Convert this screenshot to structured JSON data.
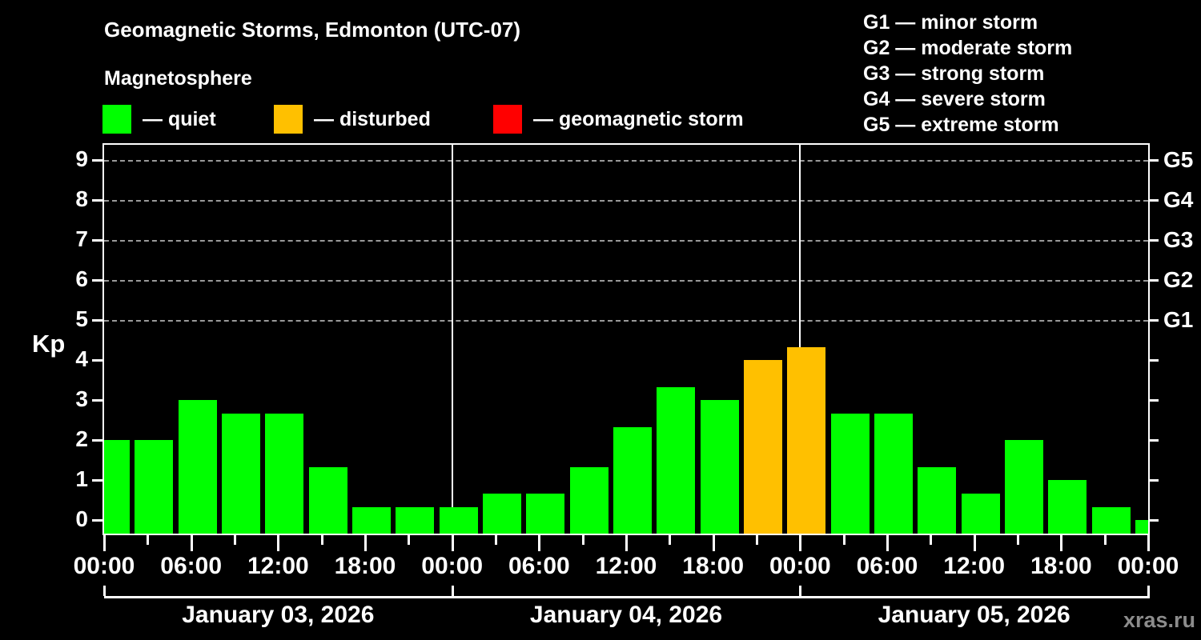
{
  "title": "Geomagnetic Storms, Edmonton (UTC-07)",
  "subtitle": "Magnetosphere",
  "legend": {
    "items": [
      {
        "name": "quiet",
        "label": "— quiet",
        "color": "#00ff00"
      },
      {
        "name": "disturbed",
        "label": "— disturbed",
        "color": "#ffc000"
      },
      {
        "name": "storm",
        "label": "— geomagnetic storm",
        "color": "#ff0000"
      }
    ]
  },
  "storm_scale": {
    "lines": [
      "G1 — minor storm",
      "G2 — moderate storm",
      "G3 — strong storm",
      "G4 — severe storm",
      "G5 — extreme storm"
    ]
  },
  "watermark": "xras.ru",
  "chart_data": {
    "type": "bar",
    "title": "Geomagnetic Storms, Edmonton (UTC-07)",
    "ylabel": "Kp",
    "ylim": [
      -0.32,
      9.38
    ],
    "yticks": [
      0,
      1,
      2,
      3,
      4,
      5,
      6,
      7,
      8,
      9
    ],
    "grid_levels_kp": [
      5,
      6,
      7,
      8,
      9
    ],
    "right_axis_labels": [
      {
        "kp": 5,
        "label": "G1"
      },
      {
        "kp": 6,
        "label": "G2"
      },
      {
        "kp": 7,
        "label": "G3"
      },
      {
        "kp": 8,
        "label": "G4"
      },
      {
        "kp": 9,
        "label": "G5"
      }
    ],
    "x_interval_hours": 3,
    "x_major_tick_labels": [
      "00:00",
      "06:00",
      "12:00",
      "18:00",
      "00:00",
      "06:00",
      "12:00",
      "18:00",
      "00:00",
      "06:00",
      "12:00",
      "18:00",
      "00:00"
    ],
    "days": [
      {
        "date": "January 03, 2026",
        "values": [
          2,
          2,
          3,
          2.67,
          2.67,
          1.33,
          0.33,
          0.33
        ]
      },
      {
        "date": "January 04, 2026",
        "values": [
          0.33,
          0.67,
          0.67,
          1.33,
          2.33,
          3.33,
          3,
          4
        ]
      },
      {
        "date": "January 05, 2026",
        "values": [
          4.33,
          2.67,
          2.67,
          1.33,
          0.67,
          2,
          1,
          0.33
        ]
      }
    ],
    "trailing_value": 0,
    "color_rules": {
      "quiet_below": 4,
      "disturbed_below": 5
    },
    "legend_note": "green quiet, orange disturbed, red geomagnetic storm"
  }
}
